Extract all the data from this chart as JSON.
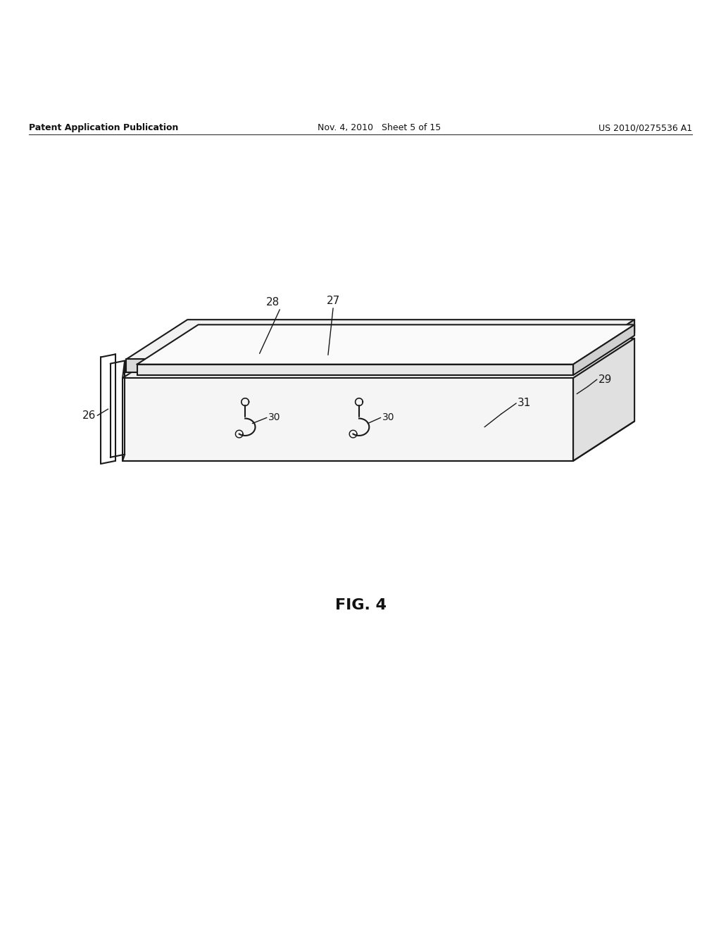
{
  "bg_color": "#ffffff",
  "line_color": "#1a1a1a",
  "header_left": "Patent Application Publication",
  "header_mid": "Nov. 4, 2010   Sheet 5 of 15",
  "header_right": "US 2010/0275536 A1",
  "fig_label": "FIG. 4"
}
